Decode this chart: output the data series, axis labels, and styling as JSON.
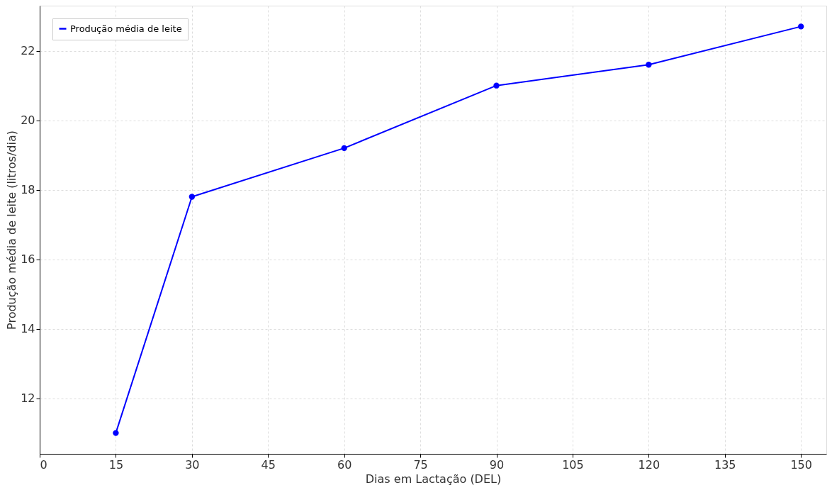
{
  "chart_data": {
    "type": "line",
    "xlabel": "Dias em Lactação (DEL)",
    "ylabel": "Produção média de leite (litros/dia)",
    "x": [
      15,
      30,
      60,
      90,
      120,
      150
    ],
    "series": [
      {
        "name": "Produção média de leite",
        "color": "#0000ff",
        "values": [
          11.0,
          17.8,
          19.2,
          21.0,
          21.6,
          22.7
        ]
      }
    ],
    "xlim": [
      0,
      155
    ],
    "xticks": [
      0,
      15,
      30,
      45,
      60,
      75,
      90,
      105,
      120,
      135,
      150
    ],
    "ylim": [
      10.4,
      23.3
    ],
    "yticks": [
      12,
      14,
      16,
      18,
      20,
      22
    ],
    "grid": true,
    "legend": "top left",
    "marker": "circle",
    "line_style": "solid"
  }
}
